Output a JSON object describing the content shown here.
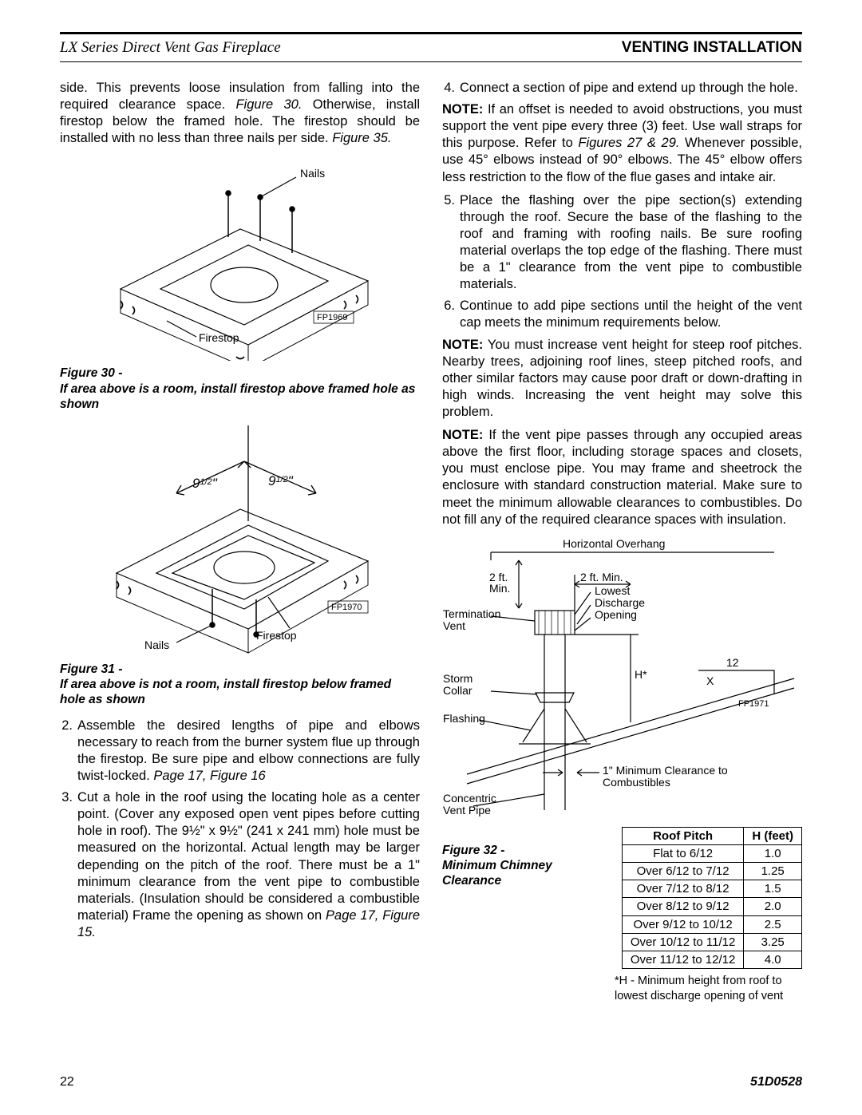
{
  "header": {
    "left": "LX Series Direct Vent Gas Fireplace",
    "right": "VENTING INSTALLATION"
  },
  "left_column": {
    "intro_text": "side. This prevents loose insulation from falling into the required clearance space. ",
    "intro_ref1": "Figure 30.",
    "intro_text2": " Otherwise, install firestop below the framed hole. The firestop should be installed with no less than three nails per side. ",
    "intro_ref2": "Figure 35.",
    "fig30": {
      "labels": {
        "nails": "Nails",
        "firestop": "Firestop",
        "code": "FP1969"
      },
      "caption_title": "Figure 30 -",
      "caption_body": "If area above is a room, install firestop above framed hole as shown"
    },
    "fig31": {
      "labels": {
        "nails": "Nails",
        "firestop": "Firestop",
        "code": "FP1970",
        "dim1": "9",
        "dim1_frac": "1/2",
        "dim2": "9",
        "dim2_frac": "1/2",
        "inch": "\""
      },
      "caption_title": "Figure 31 -",
      "caption_body": "If area above is not a room, install firestop below framed hole as shown"
    },
    "step2_text": "Assemble the desired lengths of pipe and elbows necessary to reach from the burner system flue up through the firestop. Be sure pipe and elbow connections are fully twist-locked. ",
    "step2_ref": "Page 17, Figure 16",
    "step3_text": "Cut a hole in the roof using the locating hole as a center point. (Cover any exposed open vent pipes before cutting hole in roof). The 9½\" x 9½\" (241 x 241 mm) hole must be measured on the horizontal. Actual length may be larger depending on the pitch of the roof. There must be a 1\" minimum clearance from the vent pipe to combustible materials. (Insulation should be considered a combustible material) Frame the opening as shown on ",
    "step3_ref": "Page 17, Figure 15."
  },
  "right_column": {
    "step4_text": "Connect a section of pipe and extend up through the hole.",
    "note1_lead": "NOTE:",
    "note1_text": " If an offset is needed to avoid obstructions, you must support the vent pipe every three (3) feet. Use wall straps for this purpose. Refer to ",
    "note1_ref": "Figures 27 & 29.",
    "note1_text2": " Whenever possible, use 45° elbows instead  of 90° elbows. The 45° elbow offers less restriction to the flow of the flue gases and intake air.",
    "step5_text": "Place the flashing over the pipe section(s) extending through the roof. Secure the base of the flashing to the roof and framing with roofing nails. Be sure roofing material overlaps the top edge of the flashing. There must be a 1\" clearance from the vent pipe to combustible materials.",
    "step6_text": "Continue to add pipe sections until the height of the vent cap meets the minimum requirements below.",
    "note2_lead": "NOTE:",
    "note2_text": " You must increase vent height for steep roof pitches. Nearby trees, adjoining roof lines, steep pitched roofs, and other similar factors may cause poor draft or down-drafting in high winds. Increasing the vent height may solve this problem.",
    "note3_lead": "NOTE:",
    "note3_text": " If the vent pipe passes through any occupied areas above the first floor, including storage spaces and closets, you must enclose pipe. You may frame and sheetrock the enclosure with standard construction material. Make sure to meet the minimum allowable clearances to combustibles. Do not fill any of the required clearance spaces with insulation.",
    "fig32": {
      "labels": {
        "horiz_overhang": "Horizontal Overhang",
        "two_ft_min_l": "2 ft.\nMin.",
        "two_ft_min_r": "2 ft. Min.",
        "lowest": "Lowest",
        "discharge": "Discharge",
        "opening": "Opening",
        "termination": "Termination",
        "vent": "Vent",
        "h_star": "H*",
        "twelve": "12",
        "x": "X",
        "storm": "Storm",
        "collar": "Collar",
        "flashing": "Flashing",
        "code": "FP1971",
        "min_clear1": "1\" Minimum Clearance to",
        "min_clear2": "Combustibles",
        "concentric": "Concentric",
        "vent_pipe": "Vent Pipe"
      },
      "caption_title": "Figure 32 -",
      "caption_body1": "Minimum Chimney",
      "caption_body2": "Clearance"
    },
    "table": {
      "headers": [
        "Roof Pitch",
        "H (feet)"
      ],
      "rows": [
        [
          "Flat to 6/12",
          "1.0"
        ],
        [
          "Over 6/12 to 7/12",
          "1.25"
        ],
        [
          "Over 7/12 to 8/12",
          "1.5"
        ],
        [
          "Over 8/12 to 9/12",
          "2.0"
        ],
        [
          "Over 9/12 to 10/12",
          "2.5"
        ],
        [
          "Over 10/12 to 11/12",
          "3.25"
        ],
        [
          "Over 11/12 to 12/12",
          "4.0"
        ]
      ]
    },
    "footnote": "*H - Minimum height from roof to lowest discharge opening of vent"
  },
  "footer": {
    "page": "22",
    "code": "51D0528"
  }
}
